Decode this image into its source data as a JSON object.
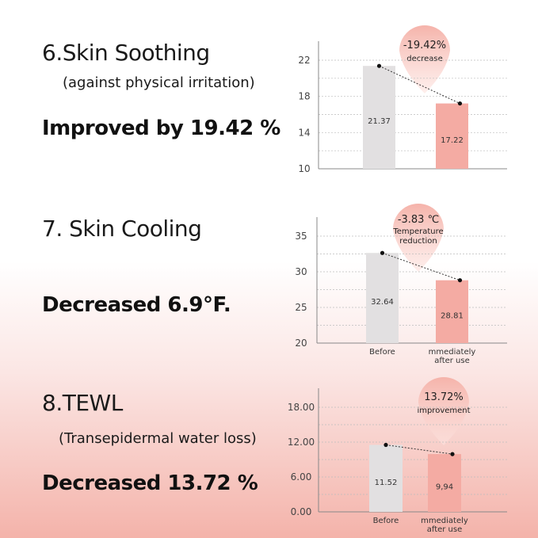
{
  "sections": [
    {
      "title": "6.Skin Soothing",
      "subtitle": "(against physical irritation)",
      "result": "Improved by 19.42 %"
    },
    {
      "title": "7.  Skin Cooling",
      "subtitle": "",
      "result": "Decreased 6.9°F."
    },
    {
      "title": "8.TEWL",
      "subtitle": "(Transepidermal water loss)",
      "result": "Decreased 13.72 %"
    }
  ],
  "chart_data": [
    {
      "type": "bar",
      "categories": [
        "",
        ""
      ],
      "values": [
        21.37,
        17.22
      ],
      "value_labels": [
        "21.37",
        "17.22"
      ],
      "ylim": [
        10,
        22
      ],
      "yticks": [
        10,
        14,
        18,
        22
      ],
      "ytick_labels": [
        "10",
        "14",
        "18",
        "22"
      ],
      "grid": true,
      "bar_colors": [
        "#e2e0e1",
        "#f4aba3"
      ],
      "callout_lines": [
        "-19.42%",
        "decrease"
      ],
      "trend_line": "dotted"
    },
    {
      "type": "bar",
      "categories": [
        "Before",
        "mmediately\nafter use"
      ],
      "values": [
        32.64,
        28.81
      ],
      "value_labels": [
        "32.64",
        "28.81"
      ],
      "ylim": [
        20,
        35
      ],
      "yticks": [
        20,
        25,
        30,
        35
      ],
      "ytick_labels": [
        "20",
        "25",
        "30",
        "35"
      ],
      "grid": true,
      "bar_colors": [
        "#e2e0e1",
        "#f4aba3"
      ],
      "callout_lines": [
        "-3.83 ℃",
        "Temperature",
        "reduction"
      ],
      "trend_line": "dotted"
    },
    {
      "type": "bar",
      "categories": [
        "Before",
        "mmediately\nafter use"
      ],
      "values": [
        11.52,
        9.94
      ],
      "value_labels": [
        "11.52",
        "9,94"
      ],
      "ylim": [
        0,
        18
      ],
      "yticks": [
        0,
        6,
        12,
        18
      ],
      "ytick_labels": [
        "0.00",
        "6.00",
        "12.00",
        "18.00"
      ],
      "grid": true,
      "bar_colors": [
        "#e2e0e1",
        "#f4aba3"
      ],
      "callout_lines": [
        "13.72%",
        "improvement"
      ],
      "trend_line": "dotted"
    }
  ]
}
